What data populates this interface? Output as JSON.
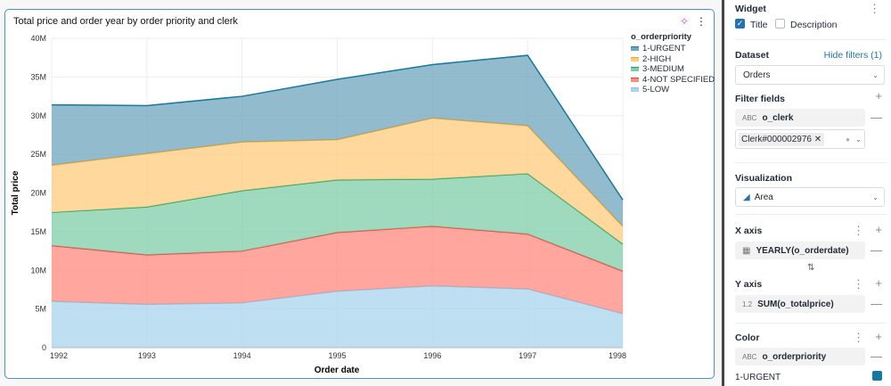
{
  "card": {
    "title": "Total price and order year by order priority and clerk",
    "sparkle_icon": "sparkle-icon",
    "menu_icon": "kebab-icon"
  },
  "chart_data": {
    "type": "area",
    "stacked": true,
    "title": "Total price and order year by order priority and clerk",
    "xlabel": "Order date",
    "ylabel": "Total price",
    "x": [
      "1992",
      "1993",
      "1994",
      "1995",
      "1996",
      "1997",
      "1998"
    ],
    "ylim": [
      0,
      40000000
    ],
    "yticks": [
      "0",
      "5M",
      "10M",
      "15M",
      "20M",
      "25M",
      "30M",
      "35M",
      "40M"
    ],
    "grid": true,
    "legend_title": "o_orderpriority",
    "legend_position": "top-right",
    "series": [
      {
        "name": "5-LOW",
        "color": "#a8d4ee",
        "line": "#8ec3e6",
        "values": [
          6.0,
          5.6,
          5.8,
          7.3,
          8.0,
          7.6,
          4.4
        ]
      },
      {
        "name": "4-NOT SPECIFIED",
        "color": "#ff8a7e",
        "line": "#e8463a",
        "values": [
          7.2,
          6.4,
          6.7,
          7.6,
          7.7,
          7.1,
          5.5
        ]
      },
      {
        "name": "3-MEDIUM",
        "color": "#7fcea8",
        "line": "#1fa366",
        "values": [
          4.3,
          6.2,
          7.8,
          6.8,
          6.1,
          7.8,
          3.5
        ]
      },
      {
        "name": "2-HIGH",
        "color": "#ffcb7d",
        "line": "#f5a623",
        "values": [
          6.1,
          6.9,
          6.3,
          5.2,
          7.9,
          6.2,
          2.3
        ]
      },
      {
        "name": "1-URGENT",
        "color": "#6ea6be",
        "line": "#16799e",
        "values": [
          7.8,
          6.2,
          5.9,
          7.8,
          6.9,
          9.1,
          3.4
        ]
      }
    ],
    "value_unit": "millions"
  },
  "panel": {
    "widget": "Widget",
    "title_cb": "Title",
    "title_checked": true,
    "desc_cb": "Description",
    "desc_checked": false,
    "dataset": "Dataset",
    "hide_filters": "Hide filters (1)",
    "dataset_value": "Orders",
    "filter_fields": "Filter fields",
    "filter_field": "o_clerk",
    "filter_value": "Clerk#000002976",
    "visualization": "Visualization",
    "viz_value": "Area",
    "x_axis": "X axis",
    "x_field": "YEARLY(o_orderdate)",
    "y_axis": "Y axis",
    "y_type": "1.2",
    "y_field": "SUM(o_totalprice)",
    "color": "Color",
    "color_field": "o_orderpriority",
    "color_item": "1-URGENT",
    "color_item_hex": "#16799e"
  }
}
